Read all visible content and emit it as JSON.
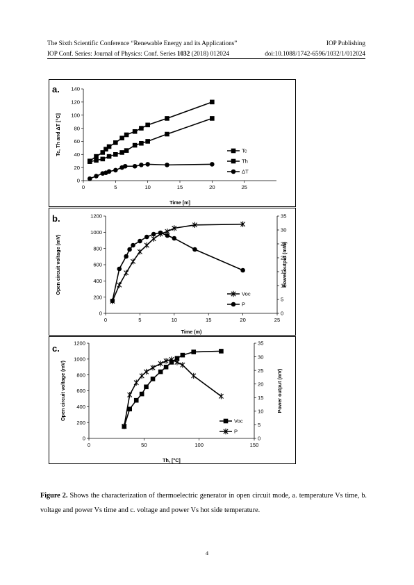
{
  "header": {
    "conference": "The Sixth Scientific Conference “Renewable Energy and its Applications”",
    "publisher": "IOP Publishing",
    "series_prefix": "IOP Conf. Series: Journal of Physics: Conf. Series ",
    "volume": "1032",
    "series_suffix": " (2018) 012024",
    "doi": "doi:10.1088/1742-6596/1032/1/012024"
  },
  "figure": {
    "caption_label": "Figure  2.",
    "caption_text": " Shows  the  characterization  of  thermoelectric  generator  in  open  circuit  mode,  a. temperature Vs time, b. voltage and power Vs time and c. voltage and power Vs hot side temperature."
  },
  "page_number": "4",
  "chart_data": [
    {
      "panel": "a.",
      "type": "line",
      "xlabel": "Time [m]",
      "ylabel": "Tc, Th and ΔT [°C]",
      "xlim": [
        0,
        30
      ],
      "ylim": [
        0,
        140
      ],
      "xticks": [
        0,
        5,
        10,
        15,
        20,
        25
      ],
      "yticks": [
        0,
        20,
        40,
        60,
        80,
        100,
        120,
        140
      ],
      "legend_position": "right",
      "series": [
        {
          "name": "Tc",
          "marker": "square",
          "x": [
            1,
            2,
            3,
            4,
            5,
            6,
            6.7,
            8,
            9,
            10,
            13,
            20
          ],
          "y": [
            29,
            31,
            33,
            37,
            40,
            43,
            46,
            54,
            57,
            60,
            71,
            95
          ]
        },
        {
          "name": "Th",
          "marker": "square",
          "x": [
            1,
            2,
            3,
            3.5,
            4,
            5,
            6,
            6.7,
            8,
            9,
            10,
            13,
            20
          ],
          "y": [
            30,
            37,
            43,
            48,
            52,
            58,
            65,
            70,
            75,
            80,
            85,
            95,
            120
          ]
        },
        {
          "name": "ΔT",
          "marker": "circle",
          "x": [
            1,
            2,
            3,
            3.5,
            4,
            5,
            6,
            6.5,
            8,
            9,
            10,
            13,
            20
          ],
          "y": [
            3,
            7,
            11,
            12,
            14,
            16,
            20,
            22,
            22,
            24,
            25,
            24,
            25
          ]
        }
      ]
    },
    {
      "panel": "b.",
      "type": "line",
      "xlabel": "Time (m)",
      "ylabel": "Open circuit  voltage (mV)",
      "y2label": "Power output (mW)",
      "xlim": [
        0,
        25
      ],
      "ylim": [
        0,
        1200
      ],
      "y2lim": [
        0,
        35
      ],
      "xticks": [
        0,
        5,
        10,
        15,
        20,
        25
      ],
      "yticks": [
        0,
        200,
        400,
        600,
        800,
        1000,
        1200
      ],
      "y2ticks": [
        0,
        5,
        10,
        15,
        20,
        25,
        30,
        35
      ],
      "legend_position": "bottom-right",
      "series": [
        {
          "name": "Voc",
          "marker": "star",
          "axis": "left",
          "x": [
            1,
            2,
            3,
            4,
            5,
            6,
            7,
            8,
            9,
            10,
            13,
            20
          ],
          "y": [
            150,
            350,
            500,
            640,
            760,
            840,
            920,
            980,
            1010,
            1050,
            1090,
            1100
          ]
        },
        {
          "name": "P",
          "marker": "circle",
          "axis": "right",
          "x": [
            1,
            2,
            3,
            3.5,
            4,
            5,
            6,
            7,
            8,
            9,
            10,
            13,
            20
          ],
          "y": [
            4.5,
            16,
            20.5,
            23,
            24.5,
            26,
            27.5,
            28.5,
            29,
            28,
            27,
            23,
            15.5
          ]
        }
      ]
    },
    {
      "panel": "c.",
      "type": "line",
      "xlabel": "Th, [°C]",
      "ylabel": "Open circuit voltage (mV)",
      "y2label": "Power output (mV)",
      "xlim": [
        0,
        150
      ],
      "ylim": [
        0,
        1200
      ],
      "y2lim": [
        0,
        35
      ],
      "xticks": [
        0,
        50,
        100,
        150
      ],
      "yticks": [
        0,
        200,
        400,
        600,
        800,
        1000,
        1200
      ],
      "y2ticks": [
        0,
        5,
        10,
        15,
        20,
        25,
        30,
        35
      ],
      "legend_position": "bottom-right",
      "series": [
        {
          "name": "Voc",
          "marker": "square",
          "axis": "left",
          "x": [
            32,
            37,
            43,
            48,
            52,
            58,
            65,
            70,
            75,
            80,
            85,
            95,
            120
          ],
          "y": [
            150,
            370,
            480,
            560,
            650,
            750,
            840,
            900,
            960,
            1010,
            1050,
            1090,
            1100
          ]
        },
        {
          "name": "P",
          "marker": "star",
          "axis": "right",
          "x": [
            32,
            37,
            43,
            48,
            52,
            58,
            65,
            70,
            75,
            80,
            85,
            95,
            120
          ],
          "y": [
            4.5,
            16,
            20.5,
            23,
            24.5,
            26,
            27.5,
            28.5,
            29,
            28,
            27,
            23,
            15.5
          ]
        }
      ]
    }
  ],
  "colors": {
    "ink": "#000000",
    "background": "#ffffff"
  }
}
